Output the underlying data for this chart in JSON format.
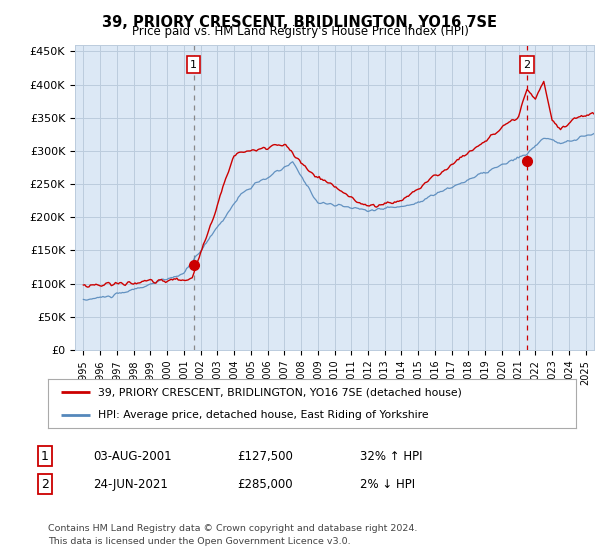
{
  "title": "39, PRIORY CRESCENT, BRIDLINGTON, YO16 7SE",
  "subtitle": "Price paid vs. HM Land Registry's House Price Index (HPI)",
  "ylabel_ticks": [
    "£0",
    "£50K",
    "£100K",
    "£150K",
    "£200K",
    "£250K",
    "£300K",
    "£350K",
    "£400K",
    "£450K"
  ],
  "ytick_values": [
    0,
    50000,
    100000,
    150000,
    200000,
    250000,
    300000,
    350000,
    400000,
    450000
  ],
  "ylim": [
    0,
    460000
  ],
  "xlim_start": 1994.5,
  "xlim_end": 2025.5,
  "xtick_years": [
    1995,
    1996,
    1997,
    1998,
    1999,
    2000,
    2001,
    2002,
    2003,
    2004,
    2005,
    2006,
    2007,
    2008,
    2009,
    2010,
    2011,
    2012,
    2013,
    2014,
    2015,
    2016,
    2017,
    2018,
    2019,
    2020,
    2021,
    2022,
    2023,
    2024,
    2025
  ],
  "red_line_color": "#cc0000",
  "blue_line_color": "#5588bb",
  "plot_bg_color": "#dce8f5",
  "sale1_year": 2001.58,
  "sale1_price": 127500,
  "sale1_label": "1",
  "sale1_line_color": "#888888",
  "sale2_year": 2021.48,
  "sale2_price": 285000,
  "sale2_label": "2",
  "sale2_line_color": "#cc0000",
  "legend_red_label": "39, PRIORY CRESCENT, BRIDLINGTON, YO16 7SE (detached house)",
  "legend_blue_label": "HPI: Average price, detached house, East Riding of Yorkshire",
  "table_row1": [
    "1",
    "03-AUG-2001",
    "£127,500",
    "32% ↑ HPI"
  ],
  "table_row2": [
    "2",
    "24-JUN-2021",
    "£285,000",
    "2% ↓ HPI"
  ],
  "footer1": "Contains HM Land Registry data © Crown copyright and database right 2024.",
  "footer2": "This data is licensed under the Open Government Licence v3.0.",
  "background_color": "#ffffff",
  "grid_color": "#bbccdd"
}
